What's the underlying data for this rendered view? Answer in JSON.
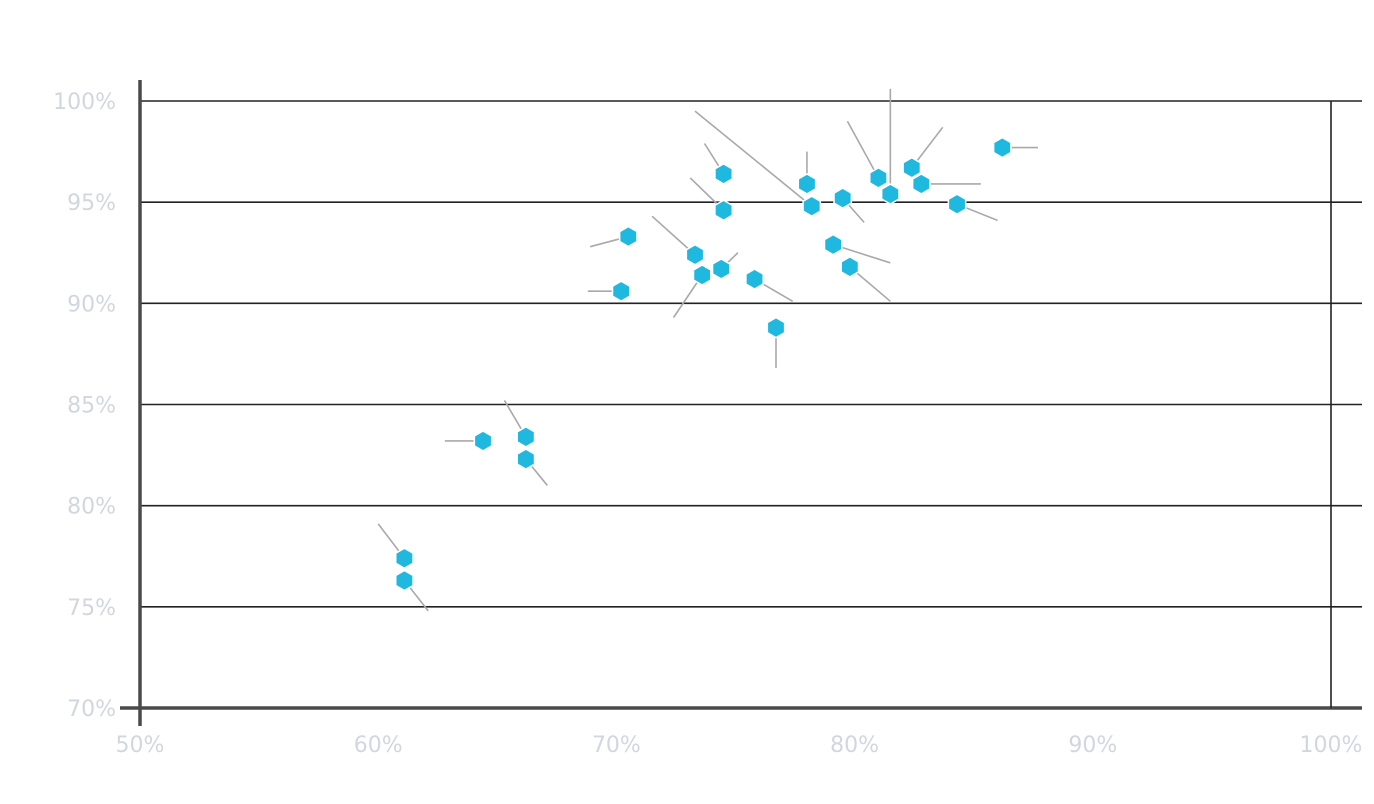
{
  "chart_data": {
    "type": "scatter",
    "title": "",
    "xlabel": "",
    "ylabel": "",
    "xlim": [
      50,
      100
    ],
    "ylim": [
      70,
      100
    ],
    "x_ticks": [
      "50%",
      "60%",
      "70%",
      "80%",
      "90%",
      "100%"
    ],
    "y_ticks": [
      "100%",
      "95%",
      "90%",
      "85%",
      "80%",
      "75%",
      "70%"
    ],
    "grid": true,
    "marker": "hexagon",
    "point_color": "#1fb9e0",
    "leader_color": "#a9a9a9",
    "series": [
      {
        "points": [
          {
            "x": 61.1,
            "y": 77.4,
            "dx": -1.1,
            "dy": 1.7
          },
          {
            "x": 61.1,
            "y": 76.3,
            "dx": 1.0,
            "dy": -1.5
          },
          {
            "x": 64.4,
            "y": 83.2,
            "dx": -1.6,
            "dy": 0.0
          },
          {
            "x": 66.2,
            "y": 83.4,
            "dx": -0.9,
            "dy": 1.8
          },
          {
            "x": 66.2,
            "y": 82.3,
            "dx": 0.9,
            "dy": -1.3
          },
          {
            "x": 70.2,
            "y": 90.6,
            "dx": -1.4,
            "dy": 0.0
          },
          {
            "x": 70.5,
            "y": 93.3,
            "dx": -1.6,
            "dy": -0.5
          },
          {
            "x": 73.3,
            "y": 92.4,
            "dx": -1.8,
            "dy": 1.9
          },
          {
            "x": 73.6,
            "y": 91.4,
            "dx": -1.2,
            "dy": -2.1
          },
          {
            "x": 74.4,
            "y": 91.7,
            "dx": 0.7,
            "dy": 0.8
          },
          {
            "x": 74.5,
            "y": 96.4,
            "dx": -0.8,
            "dy": 1.5
          },
          {
            "x": 74.5,
            "y": 94.6,
            "dx": -1.4,
            "dy": 1.6
          },
          {
            "x": 75.8,
            "y": 91.2,
            "dx": 1.6,
            "dy": -1.1
          },
          {
            "x": 76.7,
            "y": 88.8,
            "dx": 0.0,
            "dy": -2.0
          },
          {
            "x": 78.0,
            "y": 95.9,
            "dx": 0.0,
            "dy": 1.6
          },
          {
            "x": 78.2,
            "y": 94.8,
            "dx": -4.9,
            "dy": 4.7
          },
          {
            "x": 79.1,
            "y": 92.9,
            "dx": 2.4,
            "dy": -0.9
          },
          {
            "x": 79.5,
            "y": 95.2,
            "dx": 0.9,
            "dy": -1.2
          },
          {
            "x": 79.8,
            "y": 91.8,
            "dx": 1.7,
            "dy": -1.7
          },
          {
            "x": 81.0,
            "y": 96.2,
            "dx": -1.3,
            "dy": 2.8
          },
          {
            "x": 81.5,
            "y": 95.4,
            "dx": 0.0,
            "dy": 5.2
          },
          {
            "x": 82.4,
            "y": 96.7,
            "dx": 1.3,
            "dy": 2.0
          },
          {
            "x": 82.8,
            "y": 95.9,
            "dx": 2.5,
            "dy": 0.0
          },
          {
            "x": 84.3,
            "y": 94.9,
            "dx": 1.7,
            "dy": -0.8
          },
          {
            "x": 86.2,
            "y": 97.7,
            "dx": 1.5,
            "dy": 0.0
          }
        ]
      }
    ]
  }
}
